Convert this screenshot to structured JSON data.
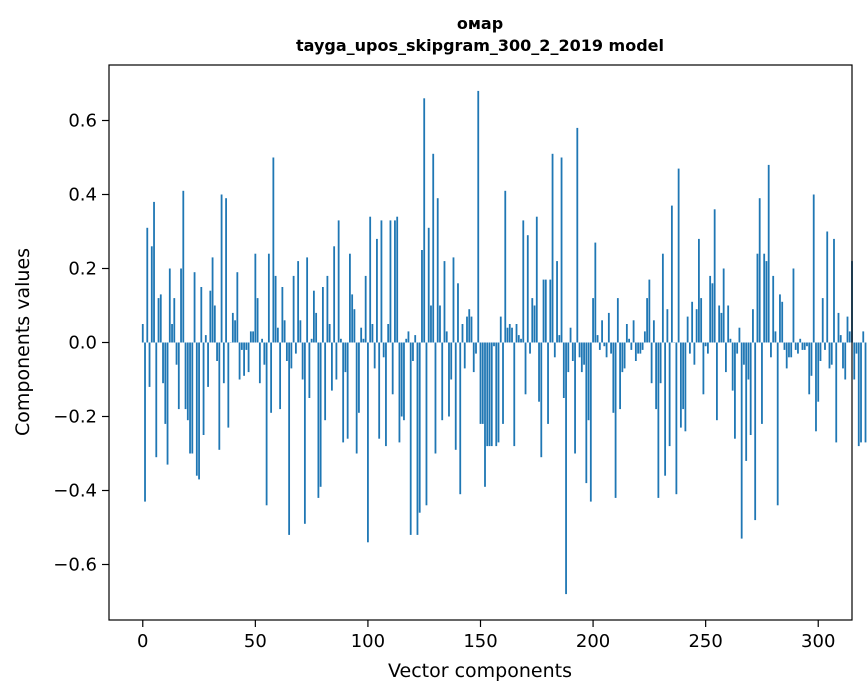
{
  "chart_data": {
    "type": "bar",
    "title": "омар",
    "subtitle": "tayga_upos_skipgram_300_2_2019 model",
    "xlabel": "Vector components",
    "ylabel": "Components values",
    "xlim": [
      -15,
      315
    ],
    "ylim": [
      -0.75,
      0.75
    ],
    "xticks": [
      0,
      50,
      100,
      150,
      200,
      250,
      300
    ],
    "yticks": [
      -0.6,
      -0.4,
      -0.2,
      0.0,
      0.2,
      0.4,
      0.6
    ],
    "xtick_labels": [
      "0",
      "50",
      "100",
      "150",
      "200",
      "250",
      "300"
    ],
    "ytick_labels": [
      "−0.6",
      "−0.4",
      "−0.2",
      "0.0",
      "0.2",
      "0.4",
      "0.6"
    ],
    "grid": false,
    "bar_color": "#1f77b4",
    "values": [
      0.05,
      -0.43,
      0.31,
      -0.12,
      0.26,
      0.38,
      -0.31,
      0.12,
      0.13,
      -0.11,
      -0.22,
      -0.33,
      0.2,
      0.05,
      0.12,
      -0.06,
      -0.18,
      0.2,
      0.41,
      -0.18,
      -0.21,
      -0.3,
      -0.3,
      0.19,
      -0.36,
      -0.37,
      0.15,
      -0.25,
      0.02,
      -0.12,
      0.14,
      0.23,
      0.1,
      -0.05,
      -0.29,
      0.4,
      -0.11,
      0.39,
      -0.23,
      0.0,
      0.08,
      0.06,
      0.19,
      -0.1,
      -0.02,
      -0.09,
      -0.02,
      -0.08,
      0.03,
      0.03,
      0.24,
      0.12,
      -0.11,
      0.01,
      -0.06,
      -0.44,
      0.24,
      -0.19,
      0.5,
      0.18,
      0.04,
      -0.18,
      0.15,
      0.06,
      -0.05,
      -0.52,
      -0.07,
      0.18,
      -0.03,
      0.22,
      0.06,
      -0.1,
      -0.49,
      0.23,
      -0.15,
      0.01,
      0.14,
      0.08,
      -0.42,
      -0.39,
      0.15,
      -0.21,
      0.18,
      0.05,
      -0.13,
      0.26,
      -0.1,
      0.33,
      0.01,
      -0.27,
      -0.08,
      -0.26,
      0.24,
      0.13,
      0.09,
      -0.3,
      -0.19,
      0.04,
      0.01,
      0.18,
      -0.54,
      0.34,
      0.05,
      -0.07,
      0.28,
      -0.26,
      0.33,
      -0.04,
      -0.28,
      0.05,
      0.33,
      -0.14,
      0.33,
      0.34,
      -0.27,
      -0.2,
      -0.21,
      0.01,
      0.03,
      -0.52,
      -0.05,
      0.02,
      -0.52,
      -0.46,
      0.25,
      0.66,
      -0.44,
      0.31,
      0.1,
      0.51,
      -0.3,
      0.39,
      0.1,
      -0.21,
      0.22,
      0.03,
      -0.2,
      -0.1,
      0.23,
      -0.29,
      0.16,
      -0.41,
      0.05,
      -0.07,
      0.07,
      0.09,
      0.07,
      -0.08,
      -0.03,
      0.68,
      -0.22,
      -0.22,
      -0.39,
      -0.28,
      -0.28,
      -0.28,
      -0.01,
      -0.28,
      -0.27,
      0.07,
      -0.22,
      0.41,
      0.04,
      0.05,
      0.04,
      -0.28,
      0.05,
      0.02,
      0.01,
      0.33,
      -0.14,
      0.29,
      -0.03,
      0.12,
      0.1,
      0.34,
      -0.16,
      -0.31,
      0.17,
      0.17,
      -0.22,
      0.17,
      0.51,
      -0.04,
      0.22,
      0.02,
      0.5,
      -0.15,
      -0.68,
      -0.08,
      0.04,
      -0.05,
      -0.3,
      0.58,
      -0.04,
      -0.08,
      -0.06,
      -0.38,
      -0.21,
      -0.43,
      0.12,
      0.27,
      0.02,
      -0.02,
      0.06,
      -0.01,
      -0.04,
      0.08,
      -0.03,
      -0.19,
      -0.42,
      0.12,
      -0.18,
      -0.08,
      -0.07,
      0.05,
      0.01,
      -0.02,
      0.06,
      -0.05,
      -0.03,
      -0.03,
      -0.02,
      0.03,
      0.12,
      0.17,
      -0.11,
      0.06,
      -0.18,
      -0.42,
      -0.11,
      0.24,
      -0.36,
      0.09,
      -0.28,
      0.37,
      0.0,
      -0.41,
      0.47,
      -0.23,
      -0.18,
      -0.24,
      0.07,
      -0.03,
      0.11,
      -0.06,
      0.09,
      0.28,
      0.12,
      -0.14,
      -0.01,
      -0.03,
      0.18,
      0.16,
      0.36,
      -0.21,
      0.1,
      0.08,
      0.2,
      -0.08,
      0.1,
      0.01,
      -0.13,
      -0.26,
      -0.03,
      0.04,
      -0.53,
      -0.06,
      -0.32,
      -0.1,
      -0.25,
      0.09,
      -0.48,
      0.24,
      0.39,
      -0.22,
      0.24,
      0.22,
      0.48,
      -0.04,
      0.18,
      0.03,
      -0.44,
      0.13,
      0.11,
      -0.02,
      -0.07,
      -0.04,
      -0.04,
      0.2,
      -0.02,
      -0.03,
      0.01,
      -0.02,
      -0.02,
      -0.01,
      -0.14,
      -0.09,
      0.4,
      -0.24,
      -0.16,
      -0.05,
      0.12,
      -0.02,
      0.3,
      -0.07,
      -0.06,
      0.28,
      -0.27,
      0.08,
      0.02,
      -0.07,
      -0.1,
      0.07,
      0.03,
      0.22,
      -0.1,
      -0.03,
      -0.28,
      -0.27,
      0.03,
      -0.27
    ]
  }
}
